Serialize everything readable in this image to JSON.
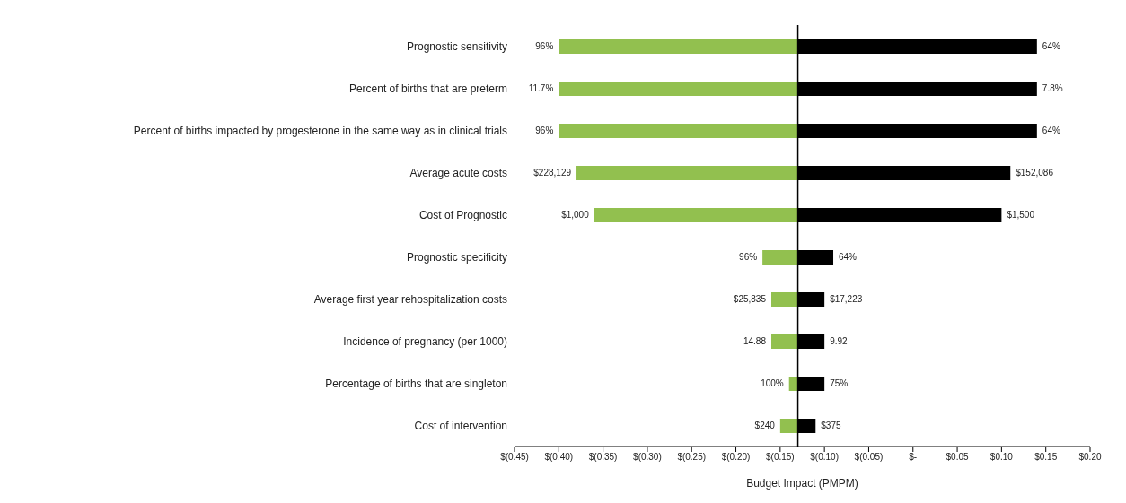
{
  "chart_data": {
    "type": "bar",
    "orientation": "horizontal",
    "xlabel": "Budget Impact (PMPM)",
    "categories": [
      "Prognostic sensitivity",
      "Percent of births that are preterm",
      "Percent of births impacted by progesterone in the same way as in clinical trials",
      "Average acute costs",
      "Cost of Prognostic",
      "Prognostic specificity",
      "Average first year rehospitalization  costs",
      "Incidence of pregnancy (per 1000)",
      "Percentage of births that are singleton",
      "Cost of intervention"
    ],
    "series": [
      {
        "color": "#92c04f",
        "base": [
          -0.13,
          -0.13,
          -0.13,
          -0.13,
          -0.13,
          -0.13,
          -0.13,
          -0.13,
          -0.13,
          -0.13
        ],
        "values": [
          -0.27,
          -0.27,
          -0.27,
          -0.25,
          -0.23,
          -0.04,
          -0.03,
          -0.03,
          -0.01,
          -0.02
        ]
      },
      {
        "color": "#000000",
        "base": [
          -0.13,
          -0.13,
          -0.13,
          -0.13,
          -0.13,
          -0.13,
          -0.13,
          -0.13,
          -0.13,
          -0.13
        ],
        "values": [
          0.27,
          0.27,
          0.27,
          0.24,
          0.23,
          0.04,
          0.03,
          0.03,
          0.03,
          0.02
        ]
      }
    ],
    "annotations": [
      {
        "text": "96%",
        "x": -0.4,
        "y": "Prognostic sensitivity"
      },
      {
        "text": "11.7%",
        "x": -0.4,
        "y": "Percent of births that are preterm"
      },
      {
        "text": "96%",
        "x": -0.4,
        "y": "Percent of births impacted by progesterone in the same way as in clinical trials"
      },
      {
        "text": "$228,129",
        "x": -0.38,
        "y": "Average acute costs"
      },
      {
        "text": "$1,000",
        "x": -0.36,
        "y": "Cost of Prognostic"
      },
      {
        "text": "96%",
        "x": -0.17,
        "y": "Prognostic specificity"
      },
      {
        "text": "$25,835",
        "x": -0.16,
        "y": "Average first year rehospitalization  costs"
      },
      {
        "text": "14.88",
        "x": -0.16,
        "y": "Incidence of pregnancy (per 1000)"
      },
      {
        "text": "100%",
        "x": -0.14,
        "y": "Percentage of births that are singleton"
      },
      {
        "text": "$240",
        "x": -0.15,
        "y": "Cost of intervention"
      },
      {
        "text": "64%",
        "x": 0.14,
        "y": "Prognostic sensitivity"
      },
      {
        "text": "7.8%",
        "x": 0.14,
        "y": "Percent of births that are preterm"
      },
      {
        "text": "64%",
        "x": 0.14,
        "y": "Percent of births impacted by progesterone in the same way as in clinical trials"
      },
      {
        "text": "$152,086",
        "x": 0.11,
        "y": "Average acute costs"
      },
      {
        "text": "$1,500",
        "x": 0.1,
        "y": "Cost of Prognostic"
      },
      {
        "text": "64%",
        "x": -0.09,
        "y": "Prognostic specificity"
      },
      {
        "text": "$17,223",
        "x": -0.1,
        "y": "Average first year rehospitalization  costs"
      },
      {
        "text": "9.92",
        "x": -0.1,
        "y": "Incidence of pregnancy (per 1000)"
      },
      {
        "text": "75%",
        "x": -0.1,
        "y": "Percentage of births that are singleton"
      },
      {
        "text": "$375",
        "x": -0.11,
        "y": "Cost of intervention"
      }
    ],
    "xlim": [
      -0.45,
      0.2
    ],
    "xticks": [
      {
        "value": -0.45,
        "label": "$(0.45)"
      },
      {
        "value": -0.4,
        "label": "$(0.40)"
      },
      {
        "value": -0.35,
        "label": "$(0.35)"
      },
      {
        "value": -0.3,
        "label": "$(0.30)"
      },
      {
        "value": -0.25,
        "label": "$(0.25)"
      },
      {
        "value": -0.2,
        "label": "$(0.20)"
      },
      {
        "value": -0.15,
        "label": "$(0.15)"
      },
      {
        "value": -0.1,
        "label": "$(0.10)"
      },
      {
        "value": -0.05,
        "label": "$(0.05)"
      },
      {
        "value": 0,
        "label": "$-"
      },
      {
        "value": 0.05,
        "label": "$0.05"
      },
      {
        "value": 0.1,
        "label": "$0.10"
      },
      {
        "value": 0.15,
        "label": "$0.15"
      },
      {
        "value": 0.2,
        "label": "$0.20"
      }
    ],
    "ref_lines": [
      {
        "axis": "x",
        "value": -0.13,
        "color": "#000000"
      }
    ],
    "grid": false,
    "legend": false
  }
}
